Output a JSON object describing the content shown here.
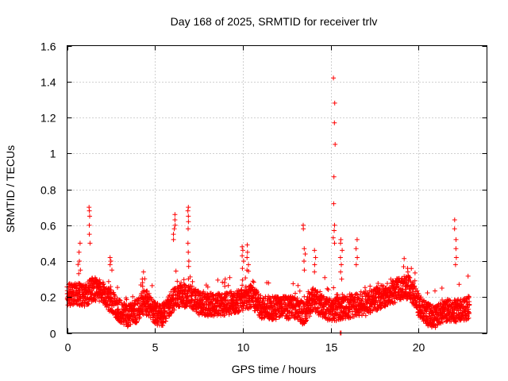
{
  "chart_data": {
    "type": "scatter",
    "title": "Day 168 of 2025, SRMTID for receiver trlv",
    "xlabel": "GPS time / hours",
    "ylabel": "SRMTID / TECUs",
    "xlim": [
      0,
      23.9
    ],
    "ylim": [
      0,
      1.6
    ],
    "xticks": [
      0,
      5,
      10,
      15,
      20
    ],
    "yticks": [
      0,
      0.2,
      0.4,
      0.6,
      0.8,
      1,
      1.2,
      1.4,
      1.6
    ],
    "xtick_labels": [
      "0",
      "5",
      "10",
      "15",
      "20"
    ],
    "ytick_labels": [
      "0",
      "0.2",
      "0.4",
      "0.6",
      "0.8",
      "1",
      "1.2",
      "1.4",
      "1.6"
    ],
    "grid": true,
    "marker": "+",
    "marker_color": "#ff0000",
    "baseline": [
      [
        0.0,
        0.2
      ],
      [
        0.5,
        0.22
      ],
      [
        1.0,
        0.2
      ],
      [
        1.5,
        0.24
      ],
      [
        2.0,
        0.22
      ],
      [
        2.5,
        0.17
      ],
      [
        3.0,
        0.12
      ],
      [
        3.5,
        0.09
      ],
      [
        4.0,
        0.12
      ],
      [
        4.4,
        0.17
      ],
      [
        5.0,
        0.1
      ],
      [
        5.5,
        0.1
      ],
      [
        6.0,
        0.17
      ],
      [
        6.5,
        0.2
      ],
      [
        7.0,
        0.2
      ],
      [
        7.5,
        0.16
      ],
      [
        8.0,
        0.15
      ],
      [
        9.0,
        0.15
      ],
      [
        10.0,
        0.18
      ],
      [
        10.5,
        0.2
      ],
      [
        11.0,
        0.14
      ],
      [
        12.0,
        0.13
      ],
      [
        13.0,
        0.14
      ],
      [
        13.5,
        0.1
      ],
      [
        14.0,
        0.18
      ],
      [
        14.5,
        0.14
      ],
      [
        15.0,
        0.12
      ],
      [
        15.5,
        0.13
      ],
      [
        16.0,
        0.14
      ],
      [
        16.5,
        0.15
      ],
      [
        17.0,
        0.15
      ],
      [
        17.5,
        0.18
      ],
      [
        18.0,
        0.2
      ],
      [
        18.5,
        0.22
      ],
      [
        19.0,
        0.24
      ],
      [
        19.5,
        0.25
      ],
      [
        20.0,
        0.15
      ],
      [
        20.5,
        0.1
      ],
      [
        21.0,
        0.08
      ],
      [
        21.5,
        0.12
      ],
      [
        22.0,
        0.12
      ],
      [
        22.5,
        0.12
      ],
      [
        23.0,
        0.14
      ]
    ],
    "spikes": [
      {
        "x": 0.7,
        "values": [
          0.5,
          0.45,
          0.4,
          0.35,
          0.33
        ]
      },
      {
        "x": 1.3,
        "values": [
          0.7,
          0.68,
          0.65,
          0.6,
          0.55,
          0.5
        ]
      },
      {
        "x": 2.5,
        "values": [
          0.42,
          0.4,
          0.38,
          0.35
        ]
      },
      {
        "x": 4.3,
        "values": [
          0.34,
          0.3,
          0.28,
          0.26
        ]
      },
      {
        "x": 6.1,
        "values": [
          0.66,
          0.63,
          0.6,
          0.58,
          0.55,
          0.52
        ]
      },
      {
        "x": 6.9,
        "values": [
          0.7,
          0.68,
          0.65,
          0.62,
          0.58,
          0.5,
          0.45,
          0.4
        ]
      },
      {
        "x": 9.0,
        "values": [
          0.3,
          0.28,
          0.26
        ]
      },
      {
        "x": 10.0,
        "values": [
          0.48,
          0.46,
          0.43,
          0.4,
          0.36
        ]
      },
      {
        "x": 10.3,
        "values": [
          0.49,
          0.45,
          0.42,
          0.38,
          0.35
        ]
      },
      {
        "x": 13.5,
        "values": [
          0.6,
          0.58,
          0.47,
          0.44,
          0.4,
          0.35
        ]
      },
      {
        "x": 14.1,
        "values": [
          0.46,
          0.42,
          0.38,
          0.34
        ]
      },
      {
        "x": 15.2,
        "values": [
          1.42,
          1.28,
          1.17,
          1.05,
          0.87,
          0.72,
          0.6,
          0.57,
          0.53,
          0.5
        ]
      },
      {
        "x": 15.6,
        "values": [
          0.52,
          0.5,
          0.46,
          0.42,
          0.38,
          0.34,
          0.3
        ]
      },
      {
        "x": 16.5,
        "values": [
          0.52,
          0.47,
          0.42,
          0.38
        ]
      },
      {
        "x": 19.4,
        "values": [
          0.36,
          0.34,
          0.32
        ]
      },
      {
        "x": 22.1,
        "values": [
          0.63,
          0.58,
          0.52,
          0.47,
          0.42,
          0.38
        ]
      }
    ],
    "zero_points": [
      [
        15.55,
        0.0
      ],
      [
        15.6,
        0.0
      ]
    ]
  }
}
